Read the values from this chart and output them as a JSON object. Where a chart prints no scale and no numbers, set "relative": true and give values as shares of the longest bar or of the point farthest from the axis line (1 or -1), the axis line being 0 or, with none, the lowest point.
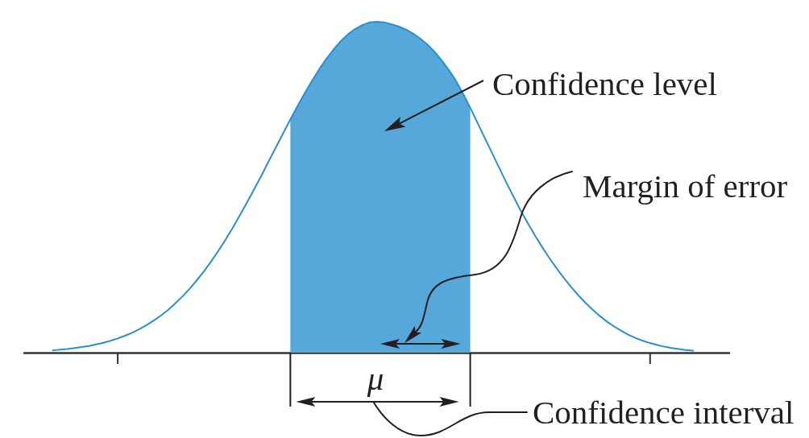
{
  "chart_data": {
    "type": "line",
    "relative": true,
    "categories": [
      null,
      null,
      null,
      null,
      null,
      null,
      null,
      null,
      null,
      null,
      null,
      null,
      null,
      null,
      null,
      null,
      null,
      null,
      null,
      null,
      null,
      null,
      null,
      null,
      null,
      null,
      null,
      null,
      null,
      null,
      null,
      null,
      null,
      null,
      null,
      null,
      null,
      null,
      null,
      null,
      null,
      null,
      null,
      null,
      null,
      null,
      null,
      null,
      null,
      null,
      null,
      null,
      null,
      null,
      null,
      null,
      null,
      null,
      null,
      null,
      null,
      null,
      null,
      null,
      null,
      null,
      null,
      null,
      null,
      null,
      null,
      null,
      null,
      null,
      null,
      null,
      null,
      null,
      null,
      null,
      null,
      null,
      null,
      null,
      null,
      null,
      null,
      null,
      null,
      null,
      null,
      null,
      null,
      null,
      null,
      null,
      null,
      null,
      null
    ],
    "series": [
      {
        "type": "line",
        "color": "#2b8fcd",
        "values": [
          null,
          null,
          null,
          null,
          0.007,
          0.009,
          0.011,
          0.014,
          0.017,
          0.02,
          0.025,
          0.03,
          0.036,
          0.043,
          0.051,
          0.06,
          0.071,
          0.083,
          0.097,
          0.112,
          0.129,
          0.149,
          0.17,
          0.193,
          0.219,
          0.246,
          0.276,
          0.308,
          0.342,
          0.378,
          0.416,
          0.455,
          0.495,
          0.536,
          0.579,
          0.621,
          0.663,
          0.705,
          0.745,
          0.784,
          0.821,
          0.856,
          0.888,
          0.916,
          0.941,
          0.962,
          0.978,
          0.99,
          0.998,
          1,
          0.998,
          0.993,
          0.986,
          0.977,
          0.965,
          0.95,
          0.932,
          0.91,
          0.884,
          0.855,
          0.822,
          0.783,
          0.74,
          0.695,
          0.65,
          0.605,
          0.56,
          0.515,
          0.472,
          0.43,
          0.391,
          0.354,
          0.319,
          0.286,
          0.255,
          0.226,
          0.199,
          0.174,
          0.151,
          0.13,
          0.111,
          0.094,
          0.079,
          0.066,
          0.054,
          0.044,
          0.036,
          0.029,
          0.023,
          0.018,
          0.014,
          0.011,
          0.008,
          0.006,
          null,
          null,
          null,
          null,
          null
        ]
      },
      {
        "type": "area",
        "color": "#56a8da",
        "values": [
          null,
          null,
          null,
          null,
          null,
          null,
          null,
          null,
          null,
          null,
          null,
          null,
          null,
          null,
          null,
          null,
          null,
          null,
          null,
          null,
          null,
          null,
          null,
          null,
          null,
          null,
          null,
          null,
          null,
          null,
          null,
          null,
          null,
          null,
          null,
          null,
          null,
          0.705,
          0.745,
          0.784,
          0.821,
          0.856,
          0.888,
          0.916,
          0.941,
          0.962,
          0.978,
          0.99,
          0.998,
          1,
          0.998,
          0.993,
          0.986,
          0.977,
          0.965,
          0.95,
          0.932,
          0.91,
          0.884,
          0.855,
          0.822,
          0.783,
          0.74,
          null,
          null,
          null,
          null,
          null,
          null,
          null,
          null,
          null,
          null,
          null,
          null,
          null,
          null,
          null,
          null,
          null,
          null,
          null,
          null,
          null,
          null,
          null,
          null,
          null,
          null,
          null,
          null,
          null,
          null,
          null,
          null,
          null,
          null,
          null,
          null
        ]
      }
    ],
    "annotations": [
      "Confidence level",
      "Margin of error",
      "μ",
      "Confidence interval"
    ]
  }
}
